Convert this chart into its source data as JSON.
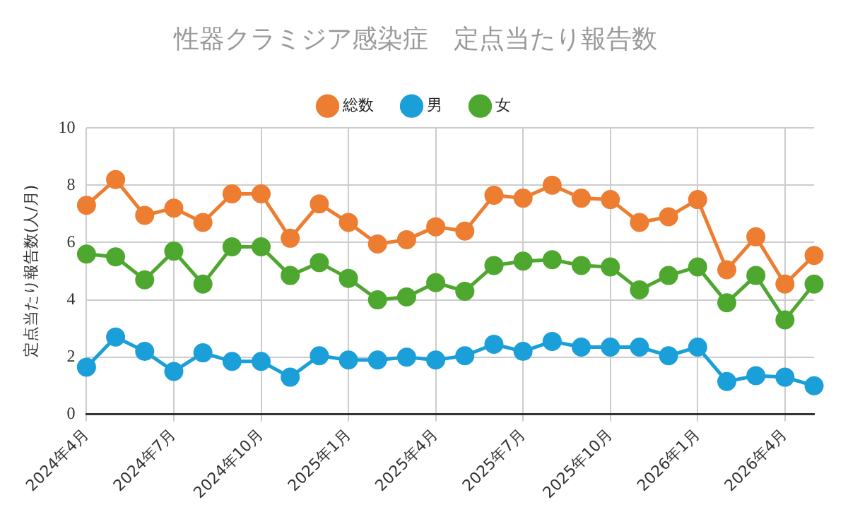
{
  "chart_data": {
    "type": "line",
    "title": "性器クラミジア感染症　定点当たり報告数",
    "ylabel": "定点当たり報告数(人/月)",
    "categories": [
      "2024年4月",
      null,
      null,
      "2024年7月",
      null,
      null,
      "2024年10月",
      null,
      null,
      "2025年1月",
      null,
      null,
      "2025年4月",
      null,
      null,
      "2025年7月",
      null,
      null,
      "2025年10月",
      null,
      null,
      "2026年1月",
      null,
      null,
      "2026年4月",
      null
    ],
    "series": [
      {
        "name": "総数",
        "color": "#ed7d31",
        "values": [
          7.3,
          8.2,
          6.95,
          7.2,
          6.7,
          7.7,
          7.7,
          6.15,
          7.35,
          6.7,
          5.95,
          6.1,
          6.55,
          6.4,
          7.65,
          7.55,
          8.0,
          7.55,
          7.5,
          6.7,
          6.9,
          7.5,
          5.05,
          6.2,
          4.55,
          5.55
        ]
      },
      {
        "name": "男",
        "color": "#1a9fd9",
        "values": [
          1.65,
          2.7,
          2.2,
          1.5,
          2.15,
          1.85,
          1.85,
          1.3,
          2.05,
          1.9,
          1.9,
          2.0,
          1.9,
          2.05,
          2.45,
          2.2,
          2.55,
          2.35,
          2.35,
          2.35,
          2.05,
          2.35,
          1.15,
          1.35,
          1.3,
          1.0
        ]
      },
      {
        "name": "女",
        "color": "#4ea72e",
        "values": [
          5.6,
          5.5,
          4.7,
          5.7,
          4.55,
          5.85,
          5.85,
          4.85,
          5.3,
          4.75,
          4.0,
          4.1,
          4.6,
          4.3,
          5.2,
          5.35,
          5.4,
          5.2,
          5.15,
          4.35,
          4.85,
          5.15,
          3.9,
          4.85,
          3.3,
          4.55
        ]
      }
    ],
    "ylim": [
      0,
      10
    ],
    "yticks": [
      0,
      2,
      4,
      6,
      8,
      10
    ],
    "grid": true,
    "legend": "top",
    "marker": "circle",
    "line_style": "solid"
  }
}
